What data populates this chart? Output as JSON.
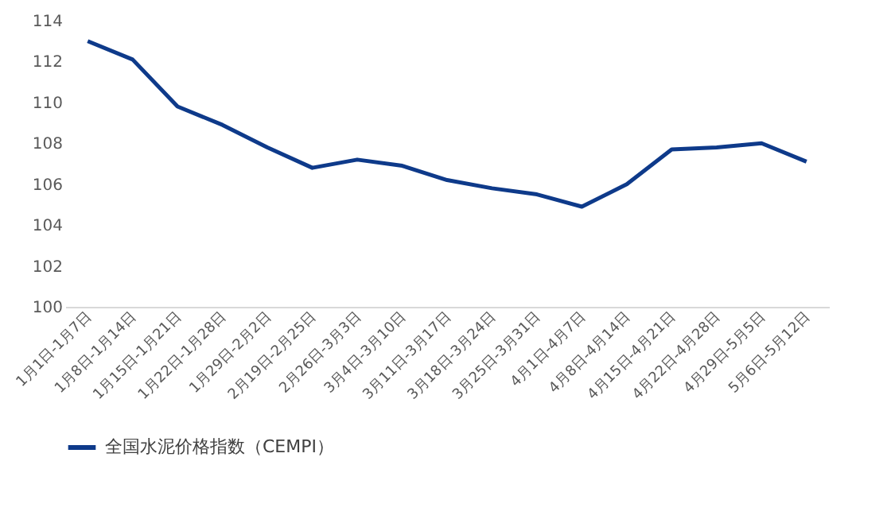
{
  "chart_data": {
    "type": "line",
    "categories": [
      "1月1日-1月7日",
      "1月8日-1月14日",
      "1月15日-1月21日",
      "1月22日-1月28日",
      "1月29日-2月2日",
      "2月19日-2月25日",
      "2月26日-3月3日",
      "3月4日-3月10日",
      "3月11日-3月17日",
      "3月18日-3月24日",
      "3月25日-3月31日",
      "4月1日-4月7日",
      "4月8日-4月14日",
      "4月15日-4月21日",
      "4月22日-4月28日",
      "4月29日-5月5日",
      "5月6日-5月12日"
    ],
    "series": [
      {
        "name": "全国水泥价格指数（CEMPI）",
        "color": "#0e3a8a",
        "values": [
          113.0,
          112.1,
          109.8,
          108.9,
          107.8,
          106.8,
          107.2,
          106.9,
          106.2,
          105.8,
          105.5,
          104.9,
          106.0,
          107.7,
          107.8,
          108.0,
          107.1
        ]
      }
    ],
    "ylim": [
      100,
      114
    ],
    "yticks": [
      100,
      102,
      104,
      106,
      108,
      110,
      112,
      114
    ],
    "grid": false,
    "legend": "bottom",
    "marker": "none",
    "line_style": "solid"
  }
}
